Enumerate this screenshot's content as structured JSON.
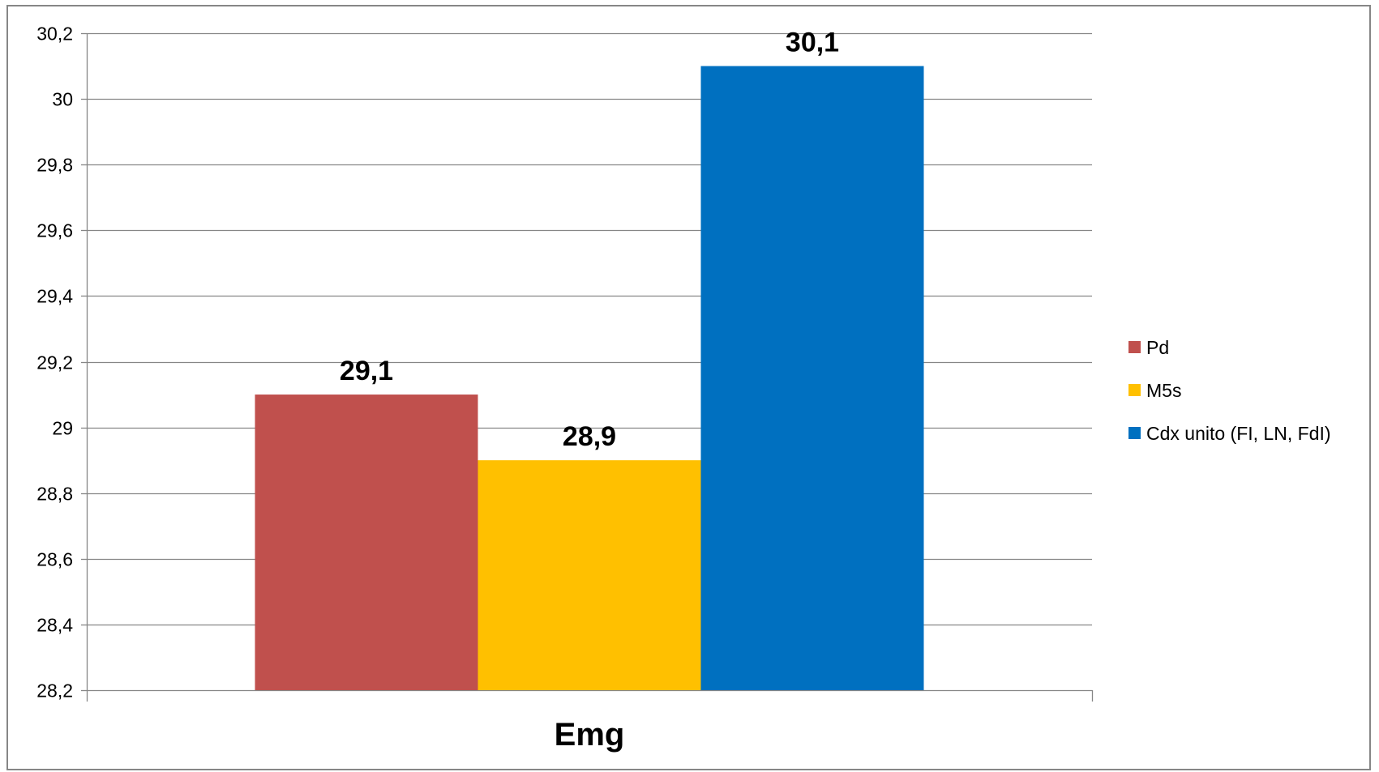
{
  "chart_data": {
    "type": "bar",
    "categories": [
      "Emg"
    ],
    "series": [
      {
        "name": "Pd",
        "values": [
          29.1
        ],
        "color": "#C0504D"
      },
      {
        "name": "M5s",
        "values": [
          28.9
        ],
        "color": "#FFC000"
      },
      {
        "name": "Cdx unito (FI, LN, FdI)",
        "values": [
          30.1
        ],
        "color": "#0070C0"
      }
    ],
    "data_labels": [
      "29,1",
      "28,9",
      "30,1"
    ],
    "ylim": [
      28.2,
      30.2
    ],
    "y_ticks": [
      28.2,
      28.4,
      28.6,
      28.8,
      29,
      29.2,
      29.4,
      29.6,
      29.8,
      30,
      30.2
    ],
    "y_tick_labels": [
      "28,2",
      "28,4",
      "28,6",
      "28,8",
      "29",
      "29,2",
      "29,4",
      "29,6",
      "29,8",
      "30",
      "30,2"
    ],
    "grid": true,
    "legend_position": "right",
    "title": "",
    "xlabel": "",
    "ylabel": ""
  }
}
